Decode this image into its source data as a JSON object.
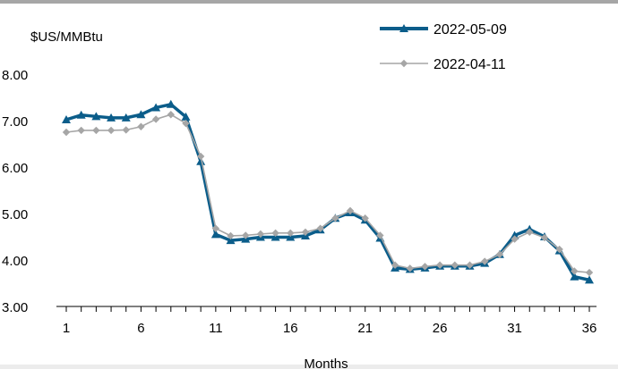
{
  "chart_data": {
    "type": "line",
    "ylabel": "$US/MMBtu",
    "xlabel": "Months",
    "ylim": [
      3.0,
      8.0
    ],
    "yticks": [
      "3.00",
      "4.00",
      "5.00",
      "6.00",
      "7.00",
      "8.00"
    ],
    "xlim": [
      1,
      36
    ],
    "xticks": [
      "1",
      "6",
      "11",
      "16",
      "21",
      "26",
      "31",
      "36"
    ],
    "grid": false,
    "legend_position": "top-right",
    "x": [
      1,
      2,
      3,
      4,
      5,
      6,
      7,
      8,
      9,
      10,
      11,
      12,
      13,
      14,
      15,
      16,
      17,
      18,
      19,
      20,
      21,
      22,
      23,
      24,
      25,
      26,
      27,
      28,
      29,
      30,
      31,
      32,
      33,
      34,
      35,
      36
    ],
    "series": [
      {
        "name": "2022-05-09",
        "color": "#0b5d8a",
        "marker": "triangle",
        "values": [
          7.02,
          7.12,
          7.09,
          7.06,
          7.06,
          7.13,
          7.28,
          7.35,
          7.08,
          6.12,
          4.55,
          4.42,
          4.45,
          4.49,
          4.49,
          4.49,
          4.52,
          4.65,
          4.9,
          5.02,
          4.86,
          4.47,
          3.83,
          3.8,
          3.83,
          3.87,
          3.87,
          3.87,
          3.93,
          4.12,
          4.53,
          4.66,
          4.5,
          4.2,
          3.64,
          3.57
        ]
      },
      {
        "name": "2022-04-11",
        "color": "#a6a6a6",
        "marker": "diamond",
        "values": [
          6.75,
          6.79,
          6.79,
          6.79,
          6.8,
          6.87,
          7.03,
          7.13,
          6.94,
          6.23,
          4.68,
          4.52,
          4.53,
          4.56,
          4.58,
          4.58,
          4.6,
          4.68,
          4.9,
          5.06,
          4.9,
          4.53,
          3.89,
          3.82,
          3.86,
          3.89,
          3.89,
          3.89,
          3.97,
          4.12,
          4.45,
          4.6,
          4.48,
          4.23,
          3.76,
          3.73
        ]
      }
    ]
  }
}
